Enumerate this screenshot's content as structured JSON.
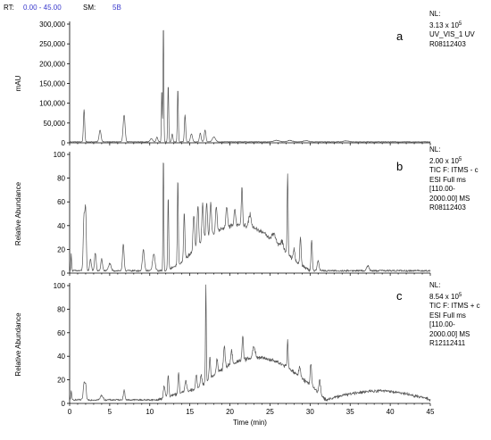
{
  "header": {
    "rt_label": "RT:",
    "rt_value": "0.00 - 45.00",
    "sm_label": "SM:",
    "sm_value": "5B"
  },
  "colors": {
    "trace": "#555555",
    "axis": "#000000",
    "header_value": "#3a3acd"
  },
  "chart_data": [
    {
      "type": "line",
      "panel": "a",
      "ylabel": "mAU",
      "xlim": [
        0,
        45
      ],
      "ylim": [
        0,
        300000
      ],
      "yticks": [
        0,
        50000,
        100000,
        150000,
        200000,
        250000,
        300000
      ],
      "yticklabels": [
        "0",
        "50,000",
        "100,000",
        "150,000",
        "200,000",
        "250,000",
        "300,000"
      ],
      "show_x_ticklabels": false,
      "baseline": 2500,
      "noise": 1500,
      "peaks": [
        [
          1.8,
          82000,
          0.08
        ],
        [
          3.8,
          30000,
          0.12
        ],
        [
          6.8,
          68000,
          0.12
        ],
        [
          10.2,
          8000,
          0.15
        ],
        [
          10.9,
          12000,
          0.1
        ],
        [
          11.5,
          135000,
          0.05
        ],
        [
          11.7,
          305000,
          0.05
        ],
        [
          12.3,
          145000,
          0.06
        ],
        [
          12.8,
          20000,
          0.08
        ],
        [
          13.5,
          135000,
          0.06
        ],
        [
          14.4,
          68000,
          0.08
        ],
        [
          15.2,
          20000,
          0.12
        ],
        [
          16.3,
          22000,
          0.1
        ],
        [
          16.9,
          30000,
          0.1
        ],
        [
          18.0,
          12000,
          0.2
        ],
        [
          25.8,
          4000,
          0.3
        ],
        [
          27.5,
          3500,
          0.3
        ],
        [
          29.5,
          3000,
          0.3
        ],
        [
          34.5,
          2500,
          0.3
        ]
      ],
      "info": {
        "nl_label": "NL:",
        "nl_mantissa": "3.13 x 10",
        "nl_exp": "5",
        "lines": [
          "UV_VIS_1  UV",
          "R08112403"
        ]
      },
      "letter": "a"
    },
    {
      "type": "line",
      "panel": "b",
      "ylabel": "Relative Abundance",
      "xlim": [
        0,
        45
      ],
      "ylim": [
        0,
        100
      ],
      "yticks": [
        0,
        20,
        40,
        60,
        80,
        100
      ],
      "yticklabels": [
        "0",
        "20",
        "40",
        "60",
        "80",
        "100"
      ],
      "show_x_ticklabels": false,
      "baseline": 2,
      "noise": 1.5,
      "hump": [
        [
          12,
          16,
          22,
          28
        ],
        [
          14,
          23,
          26,
          30
        ]
      ],
      "peaks": [
        [
          0.2,
          14,
          0.05
        ],
        [
          1.8,
          46,
          0.1
        ],
        [
          2.0,
          48,
          0.08
        ],
        [
          2.6,
          10,
          0.1
        ],
        [
          3.2,
          15,
          0.1
        ],
        [
          4.0,
          10,
          0.1
        ],
        [
          5.0,
          6,
          0.15
        ],
        [
          6.7,
          22,
          0.1
        ],
        [
          9.2,
          18,
          0.12
        ],
        [
          10.5,
          14,
          0.15
        ],
        [
          11.7,
          98,
          0.05
        ],
        [
          12.3,
          62,
          0.06
        ],
        [
          13.5,
          72,
          0.06
        ],
        [
          14.3,
          40,
          0.08
        ],
        [
          15.5,
          30,
          0.1
        ],
        [
          16.0,
          34,
          0.1
        ],
        [
          16.6,
          32,
          0.1
        ],
        [
          17.1,
          30,
          0.1
        ],
        [
          17.6,
          28,
          0.1
        ],
        [
          18.3,
          22,
          0.1
        ],
        [
          19.6,
          18,
          0.1
        ],
        [
          20.6,
          14,
          0.1
        ],
        [
          21.5,
          32,
          0.08
        ],
        [
          22.5,
          10,
          0.15
        ],
        [
          25.5,
          6,
          0.2
        ],
        [
          26.5,
          6,
          0.15
        ],
        [
          27.2,
          68,
          0.06
        ],
        [
          28.0,
          10,
          0.1
        ],
        [
          28.8,
          24,
          0.08
        ],
        [
          30.2,
          26,
          0.08
        ],
        [
          31.0,
          8,
          0.12
        ],
        [
          37.2,
          4,
          0.15
        ]
      ],
      "info": {
        "nl_label": "NL:",
        "nl_mantissa": "2.00 x 10",
        "nl_exp": "5",
        "lines": [
          "TIC F: ITMS - c",
          "ESI Full ms",
          "[110.00-",
          "2000.00]  MS",
          "R08112403"
        ]
      },
      "letter": "b"
    },
    {
      "type": "line",
      "panel": "c",
      "ylabel": "Relative Abundance",
      "xlabel": "Time (min)",
      "xlim": [
        0,
        45
      ],
      "ylim": [
        0,
        100
      ],
      "yticks": [
        0,
        20,
        40,
        60,
        80,
        100
      ],
      "yticklabels": [
        "0",
        "20",
        "40",
        "60",
        "80",
        "100"
      ],
      "xticks": [
        0,
        5,
        10,
        15,
        20,
        25,
        30,
        35,
        40,
        45
      ],
      "xticklabels": [
        "0",
        "5",
        "10",
        "15",
        "20",
        "25",
        "30",
        "35",
        "40",
        "45"
      ],
      "show_x_ticklabels": true,
      "baseline": 3,
      "noise": 1.5,
      "hump": [
        [
          11,
          14,
          17,
          32
        ],
        [
          16,
          24,
          26,
          32
        ],
        [
          32,
          8,
          9,
          45
        ]
      ],
      "peaks": [
        [
          0.2,
          8,
          0.05
        ],
        [
          1.8,
          14,
          0.1
        ],
        [
          2.0,
          12,
          0.08
        ],
        [
          4.0,
          4,
          0.15
        ],
        [
          6.8,
          8,
          0.1
        ],
        [
          11.8,
          10,
          0.1
        ],
        [
          12.3,
          18,
          0.08
        ],
        [
          13.6,
          18,
          0.08
        ],
        [
          14.5,
          10,
          0.1
        ],
        [
          15.8,
          12,
          0.1
        ],
        [
          16.4,
          10,
          0.1
        ],
        [
          17.0,
          82,
          0.05
        ],
        [
          17.5,
          18,
          0.08
        ],
        [
          18.4,
          12,
          0.1
        ],
        [
          19.3,
          18,
          0.1
        ],
        [
          20.2,
          12,
          0.1
        ],
        [
          21.6,
          20,
          0.08
        ],
        [
          23.0,
          10,
          0.15
        ],
        [
          27.2,
          24,
          0.06
        ],
        [
          28.7,
          8,
          0.1
        ],
        [
          30.1,
          20,
          0.08
        ],
        [
          31.2,
          12,
          0.1
        ]
      ],
      "info": {
        "nl_label": "NL:",
        "nl_mantissa": "8.54 x 10",
        "nl_exp": "5",
        "lines": [
          "TIC F: ITMS + c",
          "ESI Full ms",
          "[110.00-",
          "2000.00]  MS",
          "R12112411"
        ]
      },
      "letter": "c"
    }
  ]
}
